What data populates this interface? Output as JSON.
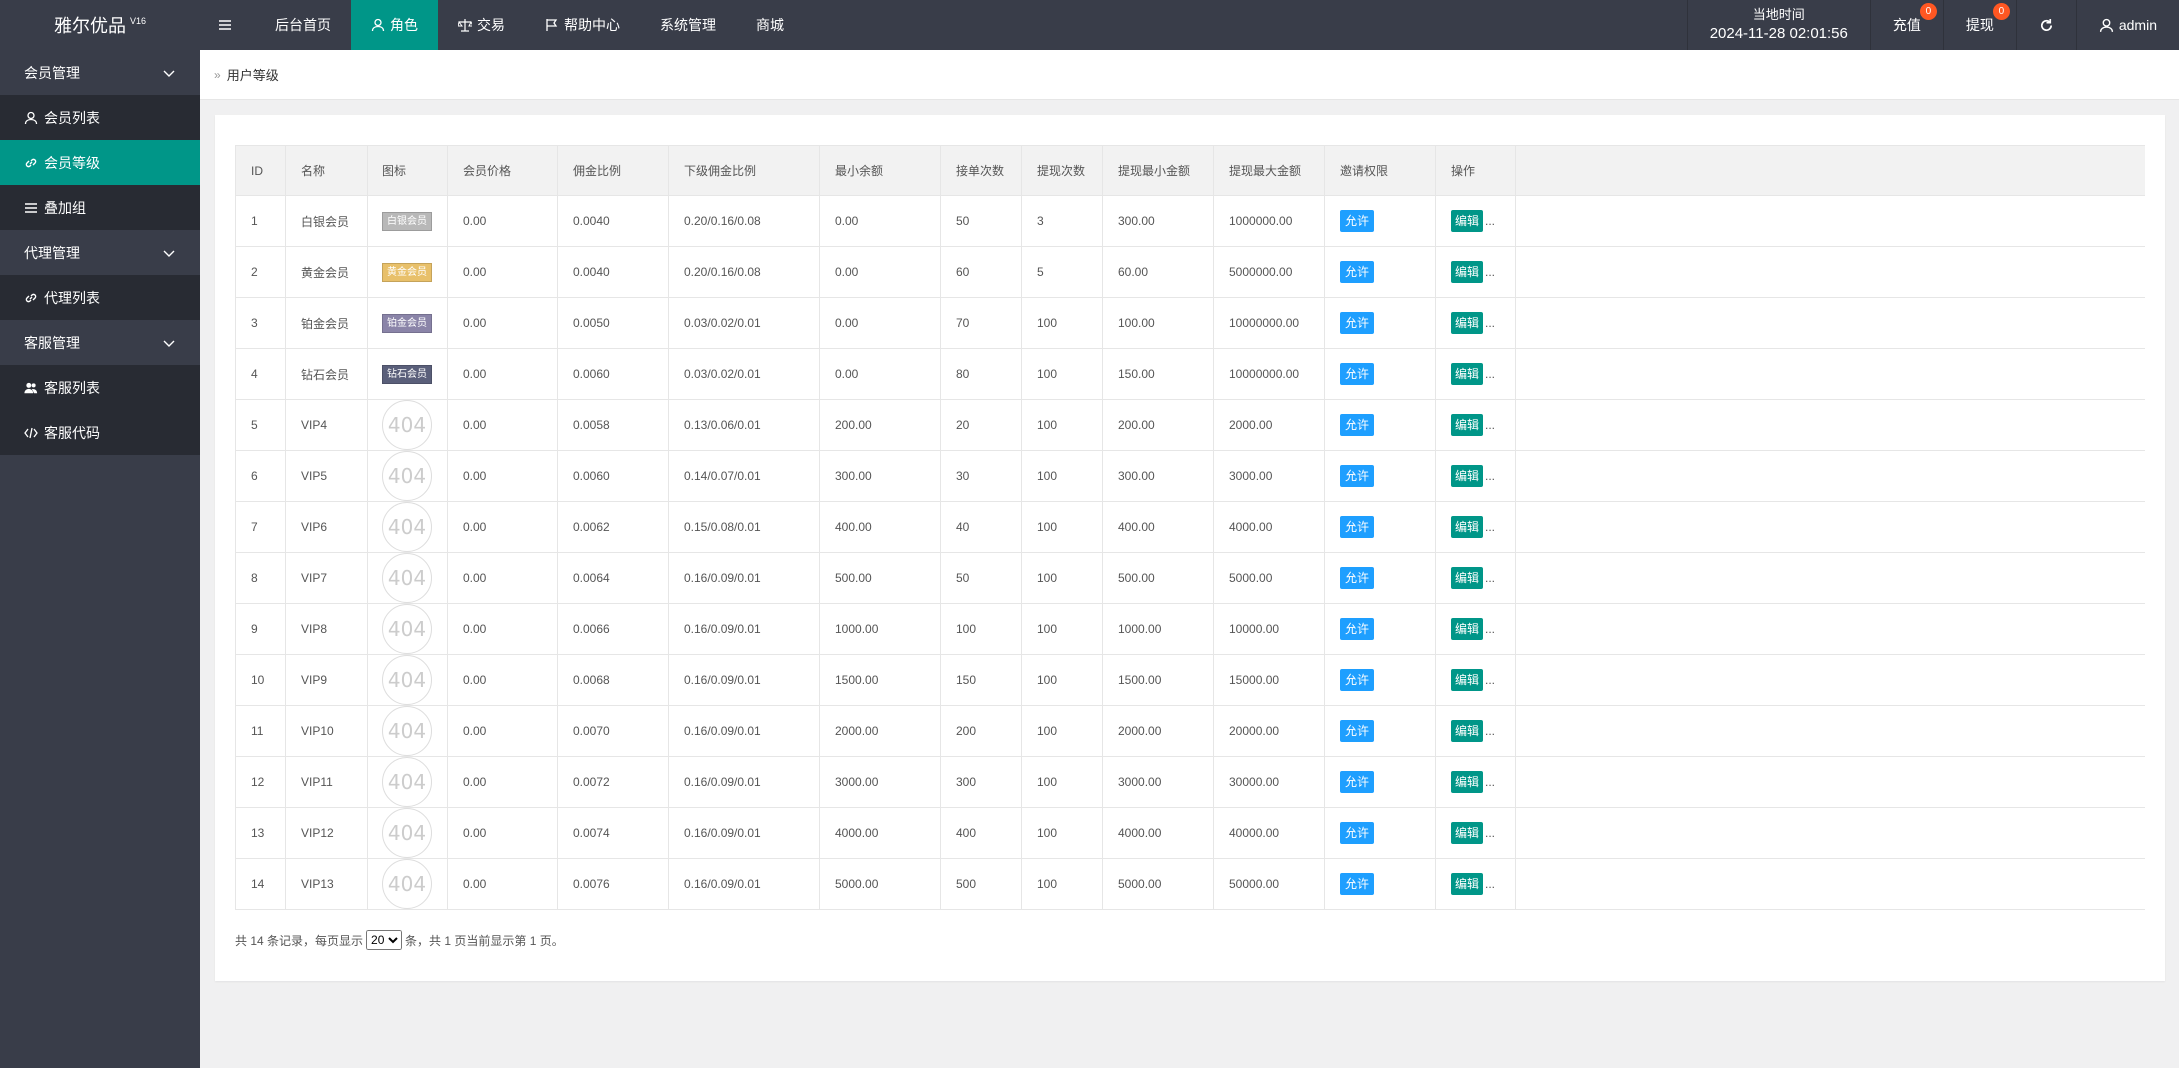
{
  "app": {
    "title": "雅尔优品",
    "version": "V16"
  },
  "topnav": [
    {
      "label": "后台首页",
      "icon": "",
      "active": false
    },
    {
      "label": "角色",
      "icon": "user-icon",
      "active": true
    },
    {
      "label": "交易",
      "icon": "scale-icon",
      "active": false
    },
    {
      "label": "帮助中心",
      "icon": "flag-icon",
      "active": false
    },
    {
      "label": "系统管理",
      "icon": "",
      "active": false
    },
    {
      "label": "商城",
      "icon": "",
      "active": false
    }
  ],
  "topright": {
    "clock_label": "当地时间",
    "clock_value": "2024-11-28 02:01:56",
    "recharge_label": "充值",
    "recharge_count": "0",
    "withdraw_label": "提现",
    "withdraw_count": "0",
    "user": "admin"
  },
  "sidebar": {
    "groups": [
      {
        "label": "会员管理",
        "items": [
          {
            "label": "会员列表",
            "icon": "user-icon",
            "active": false
          },
          {
            "label": "会员等级",
            "icon": "link-icon",
            "active": true
          },
          {
            "label": "叠加组",
            "icon": "list-icon",
            "active": false
          }
        ]
      },
      {
        "label": "代理管理",
        "items": [
          {
            "label": "代理列表",
            "icon": "link-icon",
            "active": false
          }
        ]
      },
      {
        "label": "客服管理",
        "items": [
          {
            "label": "客服列表",
            "icon": "users-icon",
            "active": false
          },
          {
            "label": "客服代码",
            "icon": "code-icon",
            "active": false
          }
        ]
      }
    ]
  },
  "breadcrumb": {
    "chevron": "»",
    "current": "用户等级"
  },
  "table": {
    "headers": [
      "ID",
      "名称",
      "图标",
      "会员价格",
      "佣金比例",
      "下级佣金比例",
      "最小余额",
      "接单次数",
      "提现次数",
      "提现最小金额",
      "提现最大金额",
      "邀请权限",
      "操作"
    ],
    "allow_label": "允许",
    "edit_label": "编辑",
    "more_label": "...",
    "notfound_label": "404",
    "rows": [
      {
        "id": "1",
        "name": "白银会员",
        "icon": {
          "type": "badge",
          "text": "白银会员",
          "color": "#b8b8b8"
        },
        "price": "0.00",
        "commission": "0.0040",
        "sub": "0.20/0.16/0.08",
        "minbal": "0.00",
        "orders": "50",
        "wcount": "3",
        "wmin": "300.00",
        "wmax": "1000000.00"
      },
      {
        "id": "2",
        "name": "黄金会员",
        "icon": {
          "type": "badge",
          "text": "黄金会员",
          "color": "#e8c06a"
        },
        "price": "0.00",
        "commission": "0.0040",
        "sub": "0.20/0.16/0.08",
        "minbal": "0.00",
        "orders": "60",
        "wcount": "5",
        "wmin": "60.00",
        "wmax": "5000000.00"
      },
      {
        "id": "3",
        "name": "铂金会员",
        "icon": {
          "type": "badge",
          "text": "铂金会员",
          "color": "#8a84a8"
        },
        "price": "0.00",
        "commission": "0.0050",
        "sub": "0.03/0.02/0.01",
        "minbal": "0.00",
        "orders": "70",
        "wcount": "100",
        "wmin": "100.00",
        "wmax": "10000000.00"
      },
      {
        "id": "4",
        "name": "钻石会员",
        "icon": {
          "type": "badge",
          "text": "钻石会员",
          "color": "#5a5f7a"
        },
        "price": "0.00",
        "commission": "0.0060",
        "sub": "0.03/0.02/0.01",
        "minbal": "0.00",
        "orders": "80",
        "wcount": "100",
        "wmin": "150.00",
        "wmax": "10000000.00"
      },
      {
        "id": "5",
        "name": "VIP4",
        "icon": {
          "type": "notfound"
        },
        "price": "0.00",
        "commission": "0.0058",
        "sub": "0.13/0.06/0.01",
        "minbal": "200.00",
        "orders": "20",
        "wcount": "100",
        "wmin": "200.00",
        "wmax": "2000.00"
      },
      {
        "id": "6",
        "name": "VIP5",
        "icon": {
          "type": "notfound"
        },
        "price": "0.00",
        "commission": "0.0060",
        "sub": "0.14/0.07/0.01",
        "minbal": "300.00",
        "orders": "30",
        "wcount": "100",
        "wmin": "300.00",
        "wmax": "3000.00"
      },
      {
        "id": "7",
        "name": "VIP6",
        "icon": {
          "type": "notfound"
        },
        "price": "0.00",
        "commission": "0.0062",
        "sub": "0.15/0.08/0.01",
        "minbal": "400.00",
        "orders": "40",
        "wcount": "100",
        "wmin": "400.00",
        "wmax": "4000.00"
      },
      {
        "id": "8",
        "name": "VIP7",
        "icon": {
          "type": "notfound"
        },
        "price": "0.00",
        "commission": "0.0064",
        "sub": "0.16/0.09/0.01",
        "minbal": "500.00",
        "orders": "50",
        "wcount": "100",
        "wmin": "500.00",
        "wmax": "5000.00"
      },
      {
        "id": "9",
        "name": "VIP8",
        "icon": {
          "type": "notfound"
        },
        "price": "0.00",
        "commission": "0.0066",
        "sub": "0.16/0.09/0.01",
        "minbal": "1000.00",
        "orders": "100",
        "wcount": "100",
        "wmin": "1000.00",
        "wmax": "10000.00"
      },
      {
        "id": "10",
        "name": "VIP9",
        "icon": {
          "type": "notfound"
        },
        "price": "0.00",
        "commission": "0.0068",
        "sub": "0.16/0.09/0.01",
        "minbal": "1500.00",
        "orders": "150",
        "wcount": "100",
        "wmin": "1500.00",
        "wmax": "15000.00"
      },
      {
        "id": "11",
        "name": "VIP10",
        "icon": {
          "type": "notfound"
        },
        "price": "0.00",
        "commission": "0.0070",
        "sub": "0.16/0.09/0.01",
        "minbal": "2000.00",
        "orders": "200",
        "wcount": "100",
        "wmin": "2000.00",
        "wmax": "20000.00"
      },
      {
        "id": "12",
        "name": "VIP11",
        "icon": {
          "type": "notfound"
        },
        "price": "0.00",
        "commission": "0.0072",
        "sub": "0.16/0.09/0.01",
        "minbal": "3000.00",
        "orders": "300",
        "wcount": "100",
        "wmin": "3000.00",
        "wmax": "30000.00"
      },
      {
        "id": "13",
        "name": "VIP12",
        "icon": {
          "type": "notfound"
        },
        "price": "0.00",
        "commission": "0.0074",
        "sub": "0.16/0.09/0.01",
        "minbal": "4000.00",
        "orders": "400",
        "wcount": "100",
        "wmin": "4000.00",
        "wmax": "40000.00"
      },
      {
        "id": "14",
        "name": "VIP13",
        "icon": {
          "type": "notfound"
        },
        "price": "0.00",
        "commission": "0.0076",
        "sub": "0.16/0.09/0.01",
        "minbal": "5000.00",
        "orders": "500",
        "wcount": "100",
        "wmin": "5000.00",
        "wmax": "50000.00"
      }
    ]
  },
  "pager": {
    "prefix": "共 14 条记录，每页显示",
    "page_size": "20",
    "suffix": "条，共 1 页当前显示第 1 页。"
  },
  "colors": {
    "topbar": "#393d49",
    "accent": "#009688",
    "allow": "#1e9fff",
    "badge": "#ff5722"
  }
}
